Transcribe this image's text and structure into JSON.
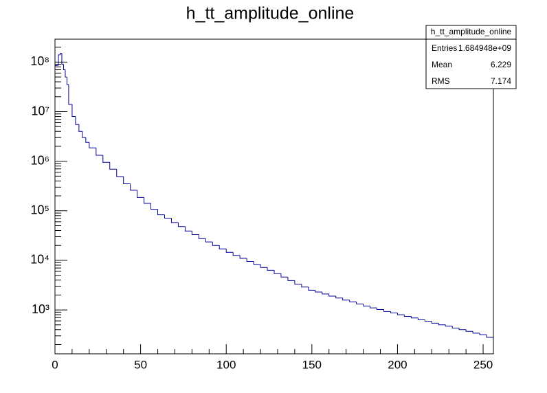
{
  "chart_data": {
    "type": "histogram",
    "title": "h_tt_amplitude_online",
    "bins": [
      0,
      1,
      2,
      3,
      4,
      5,
      6,
      7,
      8,
      10,
      12,
      14,
      16,
      18,
      20,
      24,
      28,
      32,
      36,
      40,
      44,
      48,
      52,
      56,
      60,
      64,
      68,
      72,
      76,
      80,
      84,
      88,
      92,
      96,
      100,
      104,
      108,
      112,
      116,
      120,
      124,
      128,
      132,
      136,
      140,
      144,
      148,
      152,
      156,
      160,
      164,
      168,
      172,
      176,
      180,
      184,
      188,
      192,
      196,
      200,
      204,
      208,
      212,
      216,
      220,
      224,
      228,
      232,
      236,
      240,
      244,
      248,
      252,
      256
    ],
    "values": [
      85000000,
      86000000,
      140000000,
      150000000,
      90000000,
      70000000,
      50000000,
      35000000,
      14000000,
      8000000,
      5500000,
      4000000,
      3000000,
      2400000,
      1860000,
      1320000,
      950000,
      690000,
      490000,
      350000,
      260000,
      186000,
      141000,
      107000,
      83000,
      71000,
      58000,
      48000,
      39000,
      33000,
      27500,
      23500,
      20000,
      17000,
      14500,
      12600,
      11000,
      9500,
      8300,
      7200,
      6300,
      5400,
      4600,
      3900,
      3300,
      2900,
      2500,
      2300,
      2100,
      1900,
      1740,
      1580,
      1450,
      1320,
      1200,
      1100,
      1020,
      930,
      870,
      800,
      740,
      690,
      630,
      590,
      540,
      500,
      470,
      430,
      400,
      370,
      340,
      316,
      280
    ],
    "color": "#000099",
    "xlim": [
      0,
      256
    ],
    "xticks": [
      0,
      50,
      100,
      150,
      200,
      250
    ],
    "xminorticks": [
      10,
      20,
      30,
      40,
      60,
      70,
      80,
      90,
      110,
      120,
      130,
      140,
      160,
      170,
      180,
      190,
      210,
      220,
      230,
      240
    ],
    "ylim": [
      130,
      290000000
    ],
    "log_y": true,
    "yticks": [
      {
        "value": 1000,
        "label": "10³"
      },
      {
        "value": 10000,
        "label": "10⁴"
      },
      {
        "value": 100000,
        "label": "10⁵"
      },
      {
        "value": 1000000,
        "label": "10⁶"
      },
      {
        "value": 10000000,
        "label": "10⁷"
      },
      {
        "value": 100000000,
        "label": "10⁸"
      }
    ],
    "yminorticks": [
      200,
      300,
      400,
      500,
      600,
      700,
      800,
      900,
      2000,
      3000,
      4000,
      5000,
      6000,
      7000,
      8000,
      9000,
      20000,
      30000,
      40000,
      50000,
      60000,
      70000,
      80000,
      90000,
      200000,
      300000,
      400000,
      500000,
      600000,
      700000,
      800000,
      900000,
      2000000,
      3000000,
      4000000,
      5000000,
      6000000,
      7000000,
      8000000,
      9000000,
      20000000,
      30000000,
      40000000,
      50000000,
      60000000,
      70000000,
      80000000,
      90000000,
      200000000
    ],
    "stats": {
      "title": "h_tt_amplitude_online",
      "rows": [
        [
          "Entries",
          "1.684948e+09"
        ],
        [
          "Mean",
          "6.229"
        ],
        [
          "RMS",
          "7.174"
        ]
      ]
    }
  }
}
